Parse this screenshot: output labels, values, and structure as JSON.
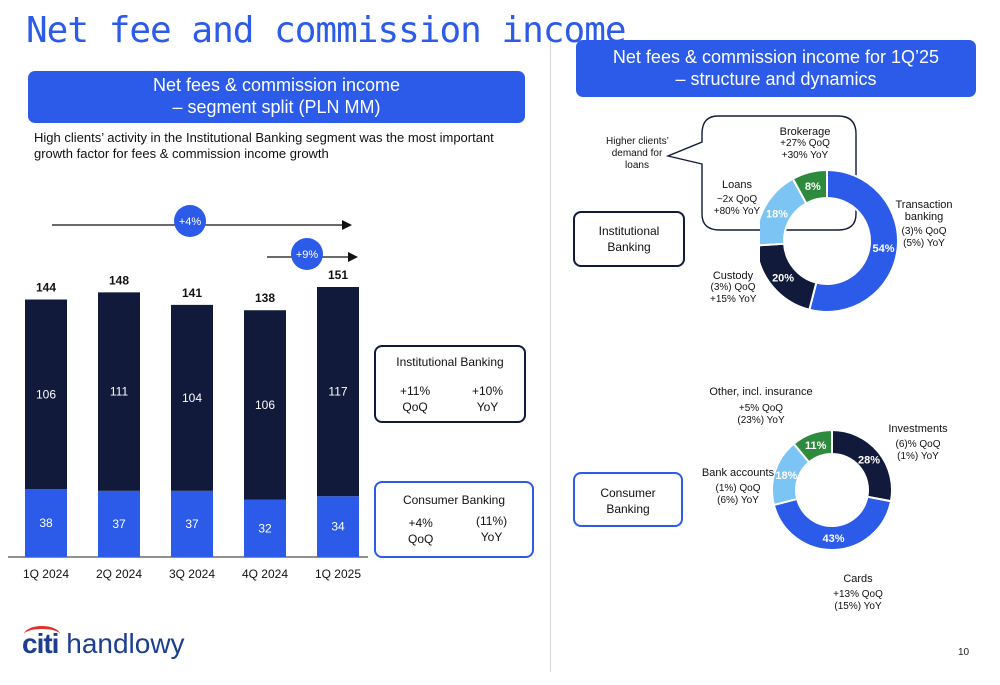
{
  "title": "Net fee and commission income",
  "left_header": {
    "line1": "Net fees & commission income",
    "line2": "– segment split (PLN MM)"
  },
  "right_header": {
    "line1": "Net fees & commission income for 1Q’25",
    "line2": "– structure and dynamics"
  },
  "description": "High clients’ activity in the Institutional Banking segment was the most important growth factor for fees & commission income growth",
  "growth_badges": {
    "year": "+4%",
    "quarter": "+9%"
  },
  "colors": {
    "institutional": "#111a3a",
    "consumer": "#2b5be8",
    "accent": "#2b5be8",
    "light_blue": "#7cc4f4",
    "green": "#2e8b3e"
  },
  "institutional_box": {
    "title": "Institutional Banking",
    "qoq": "+11%",
    "qoq_label": "QoQ",
    "yoy": "+10%",
    "yoy_label": "YoY"
  },
  "consumer_box": {
    "title": "Consumer Banking",
    "qoq": "+4%",
    "qoq_label": "QoQ",
    "yoy": "(11%)",
    "yoy_label": "YoY"
  },
  "segment_labels": {
    "institutional_l1": "Institutional",
    "institutional_l2": "Banking",
    "consumer_l1": "Consumer",
    "consumer_l2": "Banking"
  },
  "callout": {
    "l1": "Higher clients’",
    "l2": "demand for",
    "l3": "loans"
  },
  "chart_data": [
    {
      "type": "bar",
      "categories": [
        "1Q 2024",
        "2Q 2024",
        "3Q 2024",
        "4Q 2024",
        "1Q 2025"
      ],
      "totals": [
        144,
        148,
        141,
        138,
        151
      ],
      "series": [
        {
          "name": "Consumer Banking",
          "values": [
            38,
            37,
            37,
            32,
            34
          ]
        },
        {
          "name": "Institutional Banking",
          "values": [
            106,
            111,
            104,
            106,
            117
          ]
        }
      ],
      "ylim": [
        0,
        151
      ]
    },
    {
      "type": "pie",
      "segments": [
        {
          "name": "Transaction banking",
          "value": 54,
          "label": "54%",
          "color": "#2b5be8",
          "l1": "Transaction",
          "l2": "banking",
          "l3": "(3)% QoQ",
          "l4": "(5%) YoY"
        },
        {
          "name": "Custody",
          "value": 20,
          "label": "20%",
          "color": "#111a3a",
          "l1": "Custody",
          "l2": "(3%) QoQ",
          "l3": "+15% YoY"
        },
        {
          "name": "Loans",
          "value": 18,
          "label": "18%",
          "color": "#7cc4f4",
          "l1": "Loans",
          "l2": "~2x QoQ",
          "l3": "+80% YoY"
        },
        {
          "name": "Brokerage",
          "value": 8,
          "label": "8%",
          "color": "#2e8b3e",
          "l1": "Brokerage",
          "l2": "+27% QoQ",
          "l3": "+30% YoY"
        }
      ]
    },
    {
      "type": "pie",
      "segments": [
        {
          "name": "Investments",
          "value": 28,
          "label": "28%",
          "color": "#111a3a",
          "l1": "Investments",
          "l2": "(6)% QoQ",
          "l3": "(1%) YoY"
        },
        {
          "name": "Cards",
          "value": 43,
          "label": "43%",
          "color": "#2b5be8",
          "l1": "Cards",
          "l2": "+13% QoQ",
          "l3": "(15%) YoY"
        },
        {
          "name": "Bank accounts",
          "value": 18,
          "label": "18%",
          "color": "#7cc4f4",
          "l1": "Bank accounts",
          "l2": "(1%) QoQ",
          "l3": "(6%) YoY"
        },
        {
          "name": "Other, incl. insurance",
          "value": 11,
          "label": "11%",
          "color": "#2e8b3e",
          "l1": "Other, incl. insurance",
          "l2": "+5% QoQ",
          "l3": "(23%) YoY"
        }
      ]
    }
  ],
  "logo": {
    "brand": "citi",
    "name": "handlowy"
  },
  "page_number": "10"
}
